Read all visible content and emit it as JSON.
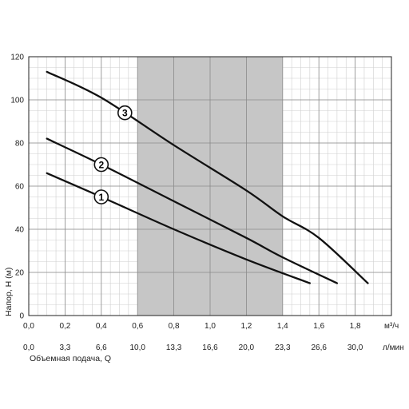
{
  "chart_data": {
    "type": "line",
    "xlabel": "Объемная подача, Q",
    "ylabel": "Напор, Н (м)",
    "x_unit": "м³/ч",
    "x2_unit": "л/мин",
    "xlim": [
      0,
      2.0
    ],
    "ylim": [
      0,
      120
    ],
    "x_ticks": [
      "0,0",
      "0,2",
      "0,4",
      "0,6",
      "0,8",
      "1,0",
      "1,2",
      "1,4",
      "1,6",
      "1,8"
    ],
    "x2_ticks": [
      "0,0",
      "3,3",
      "6,6",
      "10,0",
      "13,3",
      "16,6",
      "20,0",
      "23,3",
      "26,6",
      "30,0"
    ],
    "y_ticks": [
      "0",
      "20",
      "40",
      "60",
      "80",
      "100",
      "120"
    ],
    "grid": true,
    "shaded_range": [
      0.6,
      1.4
    ],
    "series": [
      {
        "name": "1",
        "x": [
          0.1,
          0.4,
          0.8,
          1.2,
          1.55
        ],
        "y": [
          66,
          55,
          40,
          26,
          15
        ]
      },
      {
        "name": "2",
        "x": [
          0.1,
          0.4,
          0.8,
          1.2,
          1.4,
          1.7
        ],
        "y": [
          82,
          70,
          53,
          36,
          27,
          15
        ]
      },
      {
        "name": "3",
        "x": [
          0.1,
          0.4,
          0.8,
          1.2,
          1.4,
          1.6,
          1.87
        ],
        "y": [
          113,
          101,
          79,
          58,
          46,
          36,
          15
        ]
      }
    ]
  }
}
